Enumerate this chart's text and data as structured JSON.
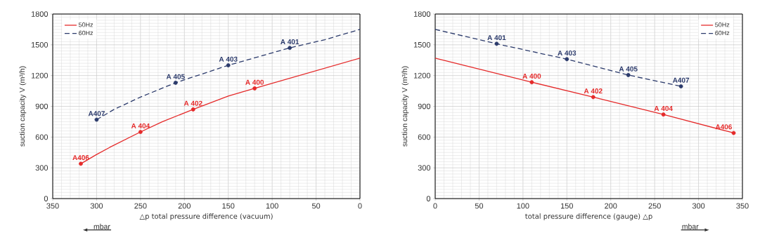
{
  "chart_data": [
    {
      "type": "line",
      "xlabel": "△p total pressure difference (vacuum)",
      "ylabel": "suction capacity V (m³/h)",
      "xlim": [
        350,
        0
      ],
      "ylim": [
        0,
        1800
      ],
      "xticks": [
        350,
        300,
        250,
        200,
        150,
        100,
        50,
        0
      ],
      "yticks": [
        0,
        300,
        600,
        900,
        1200,
        1500,
        1800
      ],
      "grid": true,
      "legend": "top left",
      "series": [
        {
          "name": "50Hz",
          "color": "#e52a2a",
          "line_style": "solid",
          "marker": "none",
          "x": [
            318,
            300,
            285,
            250,
            225,
            190,
            150,
            120,
            0
          ],
          "values": [
            340,
            430,
            500,
            650,
            750,
            870,
            1000,
            1075,
            1370
          ]
        },
        {
          "name": "60Hz",
          "color": "#2b3a6b",
          "line_style": "dashed",
          "marker": "none",
          "x": [
            300,
            280,
            250,
            210,
            150,
            80,
            40,
            0
          ],
          "values": [
            770,
            870,
            990,
            1130,
            1300,
            1470,
            1550,
            1650
          ]
        },
        {
          "type": "scatter",
          "color": "#e52a2a",
          "marker": "circle",
          "x": [
            318,
            250,
            190,
            120
          ],
          "values": [
            340,
            650,
            870,
            1075
          ]
        },
        {
          "type": "scatter",
          "color": "#2b3a6b",
          "marker": "circle",
          "x": [
            300,
            210,
            150,
            80
          ],
          "values": [
            770,
            1130,
            1300,
            1470
          ]
        }
      ],
      "annotations": [
        {
          "text": "A406",
          "x": 318,
          "y": 340
        },
        {
          "text": "A 404",
          "x": 250,
          "y": 650
        },
        {
          "text": "A 402",
          "x": 190,
          "y": 870
        },
        {
          "text": "A 400",
          "x": 120,
          "y": 1075
        },
        {
          "text": "A407",
          "x": 300,
          "y": 770
        },
        {
          "text": "A 405",
          "x": 210,
          "y": 1130
        },
        {
          "text": "A 403",
          "x": 150,
          "y": 1300
        },
        {
          "text": "A 401",
          "x": 80,
          "y": 1470
        },
        "mbar"
      ]
    },
    {
      "type": "line",
      "xlabel": "total pressure difference (gauge) △p",
      "ylabel": "suction capacity V (m³/h)",
      "xlim": [
        0,
        350
      ],
      "ylim": [
        0,
        1800
      ],
      "xticks": [
        0,
        50,
        100,
        150,
        200,
        250,
        300,
        350
      ],
      "yticks": [
        0,
        300,
        600,
        900,
        1200,
        1500,
        1800
      ],
      "grid": true,
      "legend": "top right",
      "series": [
        {
          "name": "50Hz",
          "color": "#e52a2a",
          "line_style": "solid",
          "marker": "none",
          "x": [
            0,
            110,
            180,
            260,
            340
          ],
          "values": [
            1370,
            1135,
            990,
            820,
            640
          ]
        },
        {
          "name": "60Hz",
          "color": "#2b3a6b",
          "line_style": "dashed",
          "marker": "none",
          "x": [
            0,
            70,
            150,
            220,
            280
          ],
          "values": [
            1650,
            1510,
            1360,
            1205,
            1095
          ]
        },
        {
          "type": "scatter",
          "color": "#e52a2a",
          "marker": "circle",
          "x": [
            110,
            180,
            260,
            340
          ],
          "values": [
            1135,
            990,
            820,
            640
          ]
        },
        {
          "type": "scatter",
          "color": "#2b3a6b",
          "marker": "circle",
          "x": [
            70,
            150,
            220,
            280
          ],
          "values": [
            1510,
            1360,
            1205,
            1095
          ]
        }
      ],
      "annotations": [
        {
          "text": "A 400",
          "x": 110,
          "y": 1135
        },
        {
          "text": "A 402",
          "x": 180,
          "y": 990
        },
        {
          "text": "A 404",
          "x": 260,
          "y": 820
        },
        {
          "text": "A406",
          "x": 340,
          "y": 640
        },
        {
          "text": "A 401",
          "x": 70,
          "y": 1510
        },
        {
          "text": "A 403",
          "x": 150,
          "y": 1360
        },
        {
          "text": "A 405",
          "x": 220,
          "y": 1205
        },
        {
          "text": "A407",
          "x": 280,
          "y": 1095
        },
        "mbar"
      ]
    }
  ]
}
